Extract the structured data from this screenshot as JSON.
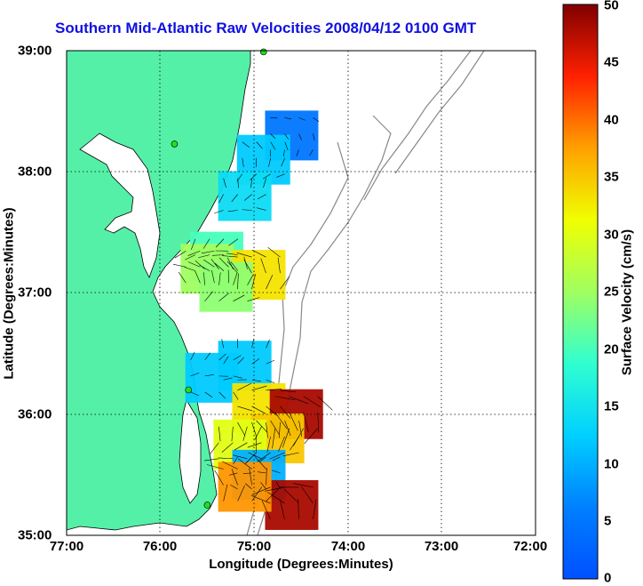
{
  "map": {
    "title": "Southern Mid-Atlantic Raw Velocities 2008/04/12 0100 GMT",
    "xlabel": "Longitude (Degrees:Minutes)",
    "ylabel": "Latitude (Degrees:Minutes)",
    "x_ticks": [
      "77:00",
      "76:00",
      "75:00",
      "74:00",
      "73:00",
      "72:00"
    ],
    "y_ticks": [
      "39:00",
      "38:00",
      "37:00",
      "36:00",
      "35:00"
    ],
    "land_color": "#55f0a8",
    "water_color": "#ffffff",
    "station_color": "#22dd22"
  },
  "colorbar": {
    "label": "Surface Velocity (cm/s)",
    "ticks": [
      "50",
      "45",
      "40",
      "35",
      "30",
      "25",
      "20",
      "15",
      "10",
      "5",
      "0"
    ],
    "min": 0,
    "max": 50,
    "colormap": "jet"
  },
  "chart_data": {
    "type": "heatmap",
    "title": "Southern Mid-Atlantic Raw Velocities 2008/04/12 0100 GMT",
    "xlabel": "Longitude (Degrees:Minutes)",
    "ylabel": "Latitude (Degrees:Minutes)",
    "xlim": [
      -77.0,
      -72.0
    ],
    "ylim": [
      35.0,
      39.0
    ],
    "value_unit": "cm/s",
    "value_range": [
      0,
      50
    ],
    "stations": [
      {
        "lon": -74.9,
        "lat": 38.99
      },
      {
        "lon": -75.85,
        "lat": 38.23
      },
      {
        "lon": -75.7,
        "lat": 36.2
      },
      {
        "lon": -75.5,
        "lat": 35.25
      }
    ],
    "velocity_regions": [
      {
        "lon": -74.6,
        "lat": 38.3,
        "speed": 5
      },
      {
        "lon": -74.9,
        "lat": 38.1,
        "speed": 12
      },
      {
        "lon": -75.1,
        "lat": 37.8,
        "speed": 14
      },
      {
        "lon": -75.4,
        "lat": 37.3,
        "speed": 20
      },
      {
        "lon": -75.5,
        "lat": 37.2,
        "speed": 25
      },
      {
        "lon": -74.95,
        "lat": 37.15,
        "speed": 33
      },
      {
        "lon": -75.3,
        "lat": 37.05,
        "speed": 24
      },
      {
        "lon": -75.1,
        "lat": 36.4,
        "speed": 12
      },
      {
        "lon": -75.45,
        "lat": 36.3,
        "speed": 12
      },
      {
        "lon": -74.95,
        "lat": 36.05,
        "speed": 33
      },
      {
        "lon": -74.55,
        "lat": 36.0,
        "speed": 48
      },
      {
        "lon": -74.75,
        "lat": 35.8,
        "speed": 35
      },
      {
        "lon": -75.15,
        "lat": 35.75,
        "speed": 30
      },
      {
        "lon": -74.95,
        "lat": 35.5,
        "speed": 10
      },
      {
        "lon": -74.6,
        "lat": 35.25,
        "speed": 48
      },
      {
        "lon": -75.1,
        "lat": 35.4,
        "speed": 38
      }
    ]
  }
}
